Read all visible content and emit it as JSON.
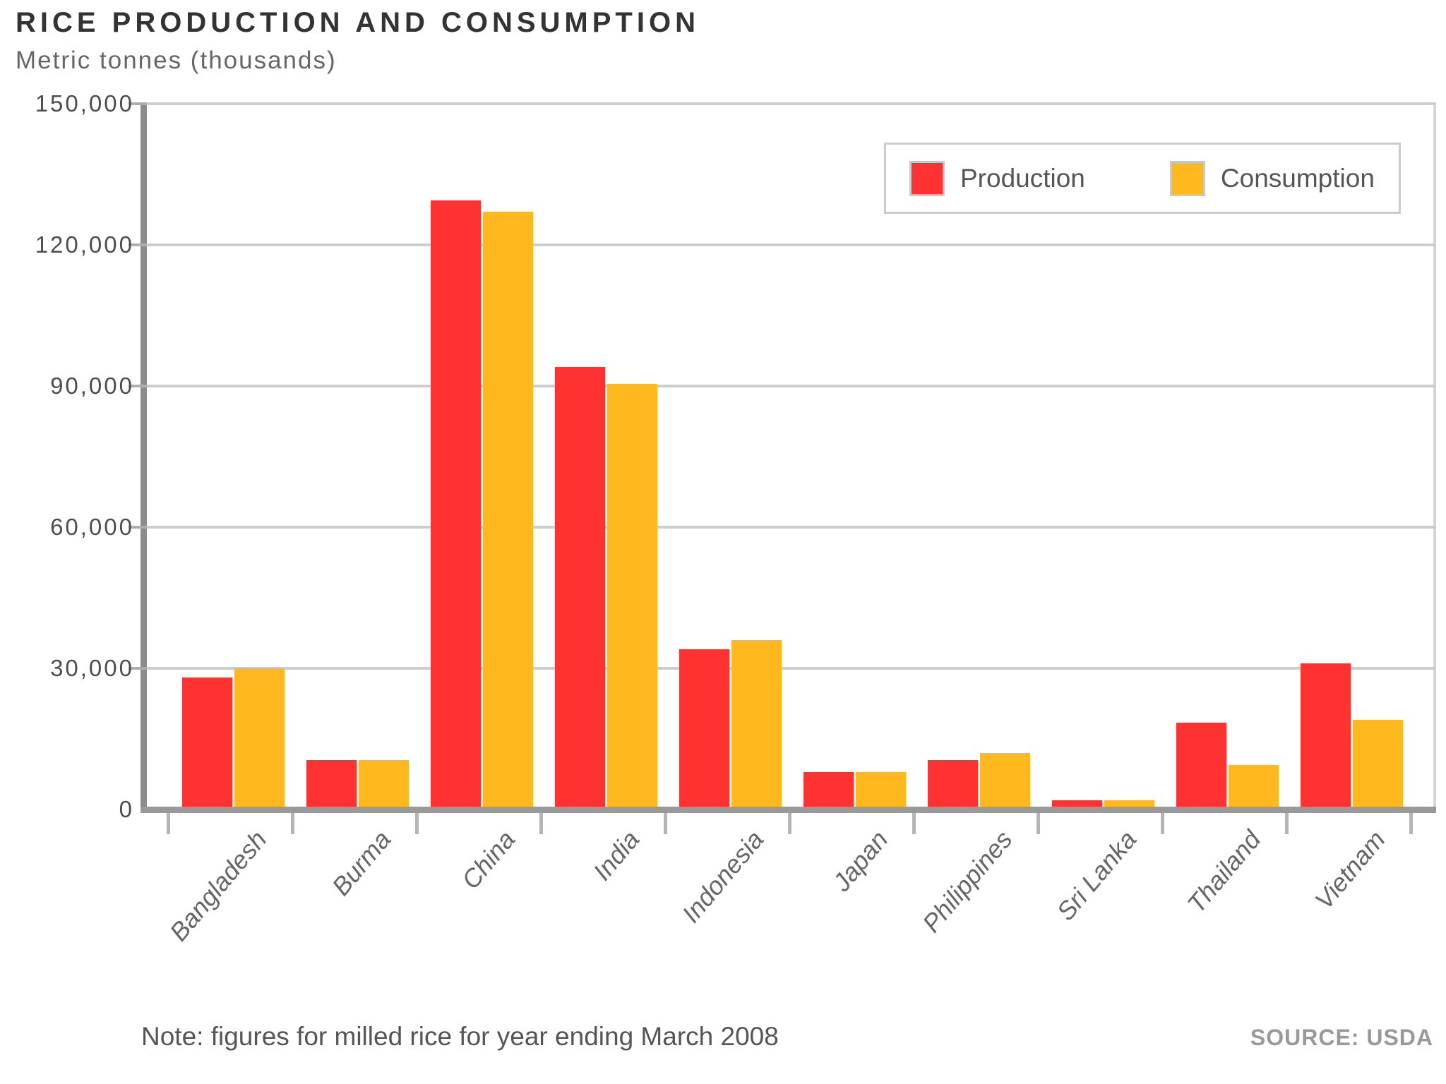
{
  "title": "RICE PRODUCTION AND CONSUMPTION",
  "subtitle": "Metric tonnes (thousands)",
  "note": "Note: figures for milled rice for year ending March 2008",
  "source": "SOURCE: USDA",
  "legend": [
    {
      "label": "Production",
      "color": "#FF3232"
    },
    {
      "label": "Consumption",
      "color": "#FFB81E"
    }
  ],
  "colors": {
    "production": "#FF3232",
    "consumption": "#FFB81E",
    "axis": "#8C8C8C",
    "gridline": "#CDCDCD",
    "text_dark": "#333333",
    "text_gray": "#666666"
  },
  "chart_data": {
    "type": "bar",
    "title": "RICE PRODUCTION AND CONSUMPTION",
    "ylabel": "Metric tonnes (thousands)",
    "xlabel": "",
    "categories": [
      "Bangladesh",
      "Burma",
      "China",
      "India",
      "Indonesia",
      "Japan",
      "Philippines",
      "Sri Lanka",
      "Thailand",
      "Vietnam"
    ],
    "series": [
      {
        "name": "Production",
        "color": "#FF3232",
        "values": [
          28000,
          10500,
          129500,
          94000,
          34000,
          8000,
          10500,
          2000,
          18500,
          31000
        ]
      },
      {
        "name": "Consumption",
        "color": "#FFB81E",
        "values": [
          30000,
          10500,
          127000,
          90500,
          36000,
          8000,
          12000,
          2000,
          9500,
          19000
        ]
      }
    ],
    "ylim": [
      0,
      150000
    ],
    "yticks": [
      0,
      30000,
      60000,
      90000,
      120000,
      150000
    ],
    "ytick_labels": [
      "0",
      "30,000",
      "60,000",
      "90,000",
      "120,000",
      "150,000"
    ],
    "grid": "horizontal",
    "legend_position": "top-right",
    "note": "Note: figures for milled rice for year ending March 2008",
    "source": "SOURCE: USDA"
  }
}
